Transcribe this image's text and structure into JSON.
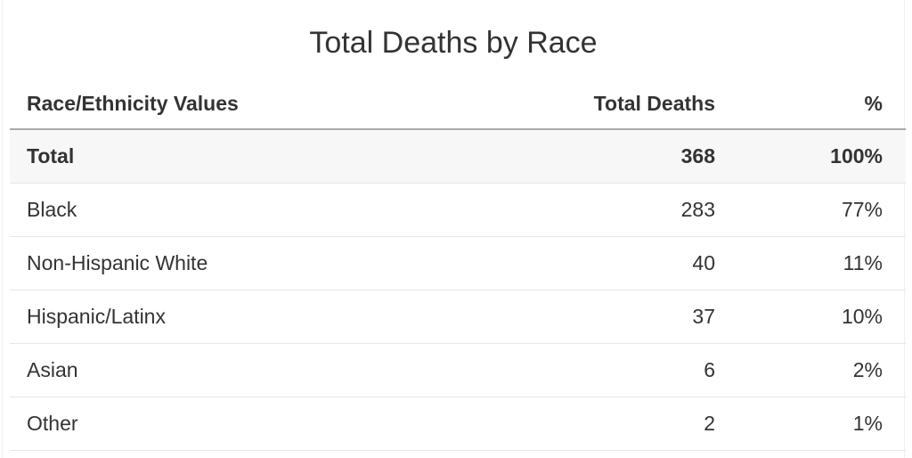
{
  "title": "Total Deaths by Race",
  "table": {
    "columns": [
      "Race/Ethnicity Values",
      "Total Deaths",
      "%"
    ],
    "rows": [
      [
        "Total",
        "368",
        "100%"
      ],
      [
        "Black",
        "283",
        "77%"
      ],
      [
        "Non-Hispanic White",
        "40",
        "11%"
      ],
      [
        "Hispanic/Latinx",
        "37",
        "10%"
      ],
      [
        "Asian",
        "6",
        "2%"
      ],
      [
        "Other",
        "2",
        "1%"
      ]
    ]
  }
}
